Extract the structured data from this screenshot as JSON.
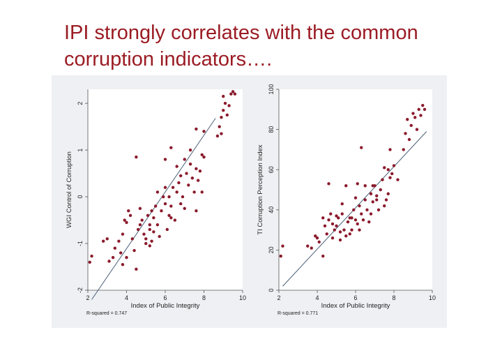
{
  "slide": {
    "title_line1": "IPI strongly correlates with the common",
    "title_line2": "corruption indicators…."
  },
  "colors": {
    "title": "#9b1c24",
    "panel": "#eef0f3",
    "point": "#8b1a2c",
    "fit_line": "#4b5f78"
  },
  "chart_data": [
    {
      "type": "scatter",
      "xlabel": "Index of Public Integrity",
      "ylabel": "WGI Control of Corruption",
      "xlim": [
        2,
        10
      ],
      "ylim": [
        -2,
        2.3
      ],
      "xticks": [
        2,
        4,
        6,
        8,
        10
      ],
      "yticks": [
        -2,
        -1,
        0,
        1,
        2
      ],
      "fit_line": {
        "x": [
          2.2,
          8.6
        ],
        "y": [
          -2.2,
          1.68
        ]
      },
      "r_squared_label": "R-squared = 0.747",
      "points": [
        [
          2.1,
          -1.4
        ],
        [
          2.2,
          -1.27
        ],
        [
          2.8,
          -0.95
        ],
        [
          3.0,
          -0.9
        ],
        [
          3.3,
          -1.3
        ],
        [
          3.1,
          -1.38
        ],
        [
          3.4,
          -1.1
        ],
        [
          3.6,
          -0.95
        ],
        [
          3.7,
          -1.2
        ],
        [
          3.8,
          -0.8
        ],
        [
          3.9,
          -0.5
        ],
        [
          4.0,
          -0.55
        ],
        [
          4.1,
          -0.3
        ],
        [
          4.2,
          -0.4
        ],
        [
          3.8,
          -1.45
        ],
        [
          4.0,
          -1.3
        ],
        [
          4.3,
          -0.9
        ],
        [
          4.4,
          -1.15
        ],
        [
          4.5,
          -1.55
        ],
        [
          4.6,
          -0.7
        ],
        [
          4.7,
          -0.6
        ],
        [
          4.8,
          -0.5
        ],
        [
          4.9,
          -0.8
        ],
        [
          5.0,
          -0.9
        ],
        [
          5.1,
          -0.4
        ],
        [
          5.0,
          -1.0
        ],
        [
          5.2,
          -0.7
        ],
        [
          5.3,
          -0.3
        ],
        [
          5.4,
          -0.45
        ],
        [
          5.2,
          -1.05
        ],
        [
          5.3,
          -0.95
        ],
        [
          5.4,
          -0.75
        ],
        [
          5.5,
          -0.2
        ],
        [
          5.6,
          -0.6
        ],
        [
          5.7,
          -0.85
        ],
        [
          5.8,
          -0.3
        ],
        [
          5.9,
          0.0
        ],
        [
          6.0,
          -0.15
        ],
        [
          6.1,
          -0.7
        ],
        [
          6.2,
          -0.4
        ],
        [
          6.3,
          -0.2
        ],
        [
          6.4,
          0.2
        ],
        [
          6.3,
          -0.45
        ],
        [
          6.5,
          -0.5
        ],
        [
          6.6,
          0.1
        ],
        [
          6.7,
          0.3
        ],
        [
          6.8,
          -0.15
        ],
        [
          6.9,
          0.0
        ],
        [
          7.0,
          -0.25
        ],
        [
          7.1,
          0.5
        ],
        [
          7.2,
          0.25
        ],
        [
          7.3,
          0.7
        ],
        [
          7.4,
          0.4
        ],
        [
          7.5,
          0.1
        ],
        [
          7.6,
          0.6
        ],
        [
          7.7,
          0.35
        ],
        [
          7.8,
          0.55
        ],
        [
          7.9,
          0.9
        ],
        [
          8.0,
          0.85
        ],
        [
          7.6,
          -0.3
        ],
        [
          7.9,
          0.1
        ],
        [
          5.6,
          0.1
        ],
        [
          6.0,
          0.2
        ],
        [
          5.2,
          -0.6
        ],
        [
          4.7,
          -0.25
        ],
        [
          6.6,
          0.65
        ],
        [
          7.0,
          0.8
        ],
        [
          7.3,
          1.0
        ],
        [
          6.2,
          0.0
        ],
        [
          6.8,
          0.45
        ],
        [
          4.5,
          0.85
        ],
        [
          6.0,
          0.8
        ],
        [
          6.3,
          1.05
        ],
        [
          7.6,
          1.45
        ],
        [
          8.0,
          1.4
        ],
        [
          8.7,
          1.3
        ],
        [
          8.8,
          1.5
        ],
        [
          8.9,
          1.7
        ],
        [
          9.0,
          1.85
        ],
        [
          9.1,
          2.0
        ],
        [
          9.2,
          1.75
        ],
        [
          9.3,
          1.95
        ],
        [
          9.4,
          2.2
        ],
        [
          9.5,
          2.25
        ],
        [
          9.6,
          2.2
        ],
        [
          9.0,
          2.15
        ],
        [
          8.9,
          1.35
        ]
      ]
    },
    {
      "type": "scatter",
      "xlabel": "Index of Public Integrity",
      "ylabel": "TI Corruption Perception Index",
      "xlim": [
        2,
        10
      ],
      "ylim": [
        0,
        100
      ],
      "xticks": [
        2,
        4,
        6,
        8,
        10
      ],
      "yticks": [
        0,
        20,
        40,
        60,
        80,
        100
      ],
      "fit_line": {
        "x": [
          2.2,
          9.7
        ],
        "y": [
          2,
          79
        ]
      },
      "r_squared_label": "R-squared = 0.771",
      "points": [
        [
          2.1,
          17
        ],
        [
          2.2,
          22
        ],
        [
          3.5,
          22
        ],
        [
          3.7,
          21
        ],
        [
          3.9,
          27
        ],
        [
          4.0,
          26
        ],
        [
          4.1,
          24
        ],
        [
          4.3,
          36
        ],
        [
          4.4,
          32
        ],
        [
          4.5,
          28
        ],
        [
          4.3,
          17
        ],
        [
          4.6,
          35
        ],
        [
          4.7,
          38
        ],
        [
          4.8,
          33
        ],
        [
          4.9,
          30
        ],
        [
          5.0,
          32
        ],
        [
          5.1,
          36
        ],
        [
          5.2,
          29
        ],
        [
          5.3,
          38
        ],
        [
          5.4,
          30
        ],
        [
          5.5,
          27
        ],
        [
          5.6,
          34
        ],
        [
          5.7,
          36
        ],
        [
          5.8,
          30
        ],
        [
          5.9,
          40
        ],
        [
          6.0,
          35
        ],
        [
          6.1,
          33
        ],
        [
          6.2,
          42
        ],
        [
          6.3,
          38
        ],
        [
          6.4,
          35
        ],
        [
          6.5,
          45
        ],
        [
          6.6,
          40
        ],
        [
          6.7,
          34
        ],
        [
          6.8,
          48
        ],
        [
          6.9,
          44
        ],
        [
          7.0,
          52
        ],
        [
          7.1,
          45
        ],
        [
          7.2,
          40
        ],
        [
          7.3,
          50
        ],
        [
          7.4,
          55
        ],
        [
          7.5,
          42
        ],
        [
          7.6,
          45
        ],
        [
          7.7,
          60
        ],
        [
          7.8,
          56
        ],
        [
          7.9,
          58
        ],
        [
          8.0,
          62
        ],
        [
          6.1,
          53
        ],
        [
          6.5,
          52
        ],
        [
          6.3,
          71
        ],
        [
          7.5,
          61
        ],
        [
          7.8,
          70
        ],
        [
          5.5,
          52
        ],
        [
          4.6,
          53
        ],
        [
          6.8,
          38
        ],
        [
          7.1,
          47
        ],
        [
          5.0,
          37
        ],
        [
          5.3,
          43
        ],
        [
          5.8,
          36
        ],
        [
          6.0,
          46
        ],
        [
          4.8,
          26
        ],
        [
          5.2,
          25
        ],
        [
          8.2,
          55
        ],
        [
          8.5,
          70
        ],
        [
          8.6,
          78
        ],
        [
          8.8,
          75
        ],
        [
          8.9,
          82
        ],
        [
          9.0,
          88
        ],
        [
          9.1,
          86
        ],
        [
          9.3,
          90
        ],
        [
          9.4,
          87
        ],
        [
          9.5,
          92
        ],
        [
          9.6,
          90
        ],
        [
          9.2,
          80
        ],
        [
          8.7,
          85
        ],
        [
          7.7,
          48
        ],
        [
          6.9,
          52
        ],
        [
          5.7,
          28
        ],
        [
          6.2,
          30
        ]
      ]
    }
  ]
}
